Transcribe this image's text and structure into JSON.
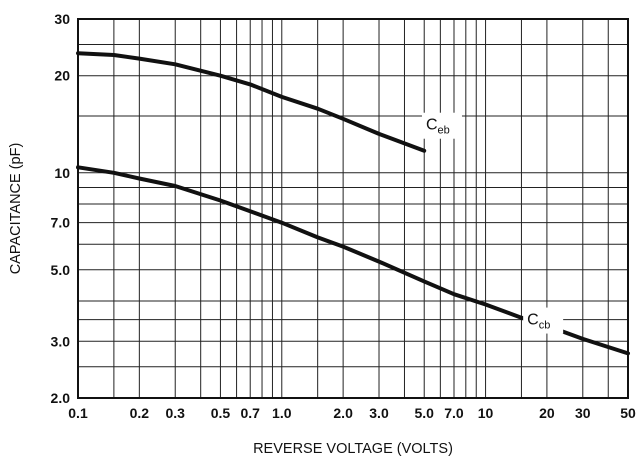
{
  "chart_data": {
    "type": "line",
    "title": "",
    "xlabel": "REVERSE VOLTAGE (VOLTS)",
    "ylabel": "CAPACITANCE (pF)",
    "xscale": "log",
    "yscale": "log",
    "xlim": [
      0.1,
      50
    ],
    "ylim": [
      2.0,
      30
    ],
    "grid": true,
    "x_ticks": [
      0.1,
      0.2,
      0.3,
      0.5,
      0.7,
      1.0,
      2.0,
      3.0,
      5.0,
      7.0,
      10,
      20,
      30,
      50
    ],
    "x_tick_labels": [
      "0.1",
      "0.2",
      "0.3",
      "0.5",
      "0.7",
      "1.0",
      "2.0",
      "3.0",
      "5.0",
      "7.0",
      "10",
      "20",
      "30",
      "50"
    ],
    "y_ticks": [
      2.0,
      3.0,
      5.0,
      7.0,
      10,
      20,
      30
    ],
    "y_tick_labels": [
      "2.0",
      "3.0",
      "5.0",
      "7.0",
      "10",
      "20",
      "30"
    ],
    "x_grid": [
      0.1,
      0.15,
      0.2,
      0.3,
      0.4,
      0.5,
      0.6,
      0.7,
      0.8,
      0.9,
      1,
      1.5,
      2,
      3,
      4,
      5,
      6,
      7,
      8,
      9,
      10,
      15,
      20,
      30,
      40,
      50
    ],
    "y_grid": [
      2,
      2.5,
      3,
      3.5,
      4,
      5,
      6,
      7,
      8,
      9,
      10,
      15,
      20,
      25,
      30
    ],
    "series": [
      {
        "label_main": "C",
        "label_sub": "eb",
        "label_at": [
          5.1,
          13.6
        ],
        "x": [
          0.1,
          0.15,
          0.2,
          0.3,
          0.5,
          0.7,
          1.0,
          1.5,
          2.0,
          3.0,
          5.0
        ],
        "y": [
          23.5,
          23.2,
          22.6,
          21.7,
          20.0,
          18.8,
          17.2,
          15.8,
          14.7,
          13.2,
          11.7
        ]
      },
      {
        "label_main": "C",
        "label_sub": "cb",
        "label_at": [
          16,
          3.38
        ],
        "x": [
          0.1,
          0.15,
          0.2,
          0.3,
          0.5,
          0.7,
          1.0,
          1.5,
          2.0,
          3.0,
          5.0,
          7.0,
          10,
          15,
          20,
          30,
          50
        ],
        "y": [
          10.4,
          10.0,
          9.6,
          9.1,
          8.2,
          7.6,
          7.0,
          6.3,
          5.9,
          5.3,
          4.6,
          4.2,
          3.9,
          3.55,
          3.35,
          3.05,
          2.75
        ]
      }
    ]
  }
}
